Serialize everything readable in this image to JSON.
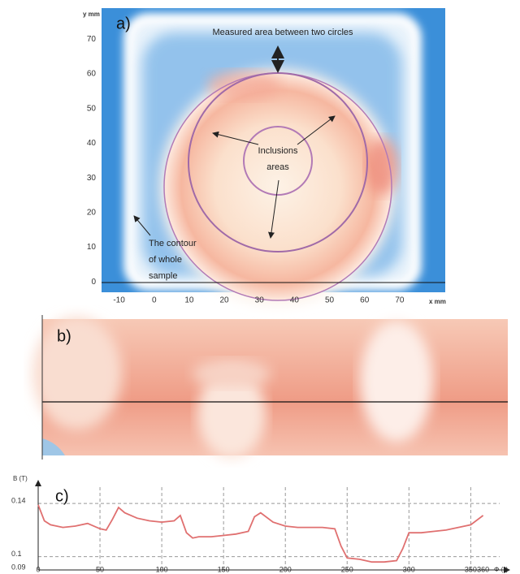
{
  "chart_data": [
    {
      "type": "heatmap",
      "panel_label": "a)",
      "xlabel": "x mm",
      "ylabel": "y mm",
      "xlim": [
        -15,
        83
      ],
      "ylim": [
        -3,
        79
      ],
      "xticks": [
        -10,
        0,
        10,
        20,
        30,
        40,
        50,
        60,
        70
      ],
      "yticks": [
        0,
        10,
        20,
        30,
        40,
        50,
        60,
        70
      ],
      "annotations": [
        "Measured area between two circles",
        "Inclusions",
        "areas",
        "The contour",
        "of whole",
        "sample"
      ]
    },
    {
      "type": "heatmap",
      "panel_label": "b)"
    },
    {
      "type": "line",
      "panel_label": "c)",
      "xlabel": "Φ (°)",
      "ylabel": "B (T)",
      "xlim": [
        0,
        380
      ],
      "ylim": [
        0.09,
        0.145
      ],
      "xticks": [
        0,
        50,
        100,
        150,
        200,
        250,
        300,
        350,
        360
      ],
      "yticks": [
        0.09,
        0.1,
        0.14
      ],
      "grid": "dashed",
      "color": "#e07070",
      "x": [
        0,
        5,
        10,
        20,
        30,
        40,
        50,
        55,
        60,
        65,
        70,
        80,
        90,
        100,
        110,
        115,
        120,
        125,
        130,
        140,
        150,
        160,
        170,
        175,
        180,
        190,
        200,
        210,
        220,
        230,
        240,
        245,
        250,
        260,
        270,
        280,
        290,
        295,
        300,
        310,
        320,
        330,
        340,
        350,
        360
      ],
      "values": [
        0.139,
        0.127,
        0.124,
        0.122,
        0.123,
        0.125,
        0.121,
        0.12,
        0.128,
        0.137,
        0.133,
        0.129,
        0.127,
        0.126,
        0.127,
        0.131,
        0.118,
        0.114,
        0.115,
        0.115,
        0.116,
        0.117,
        0.119,
        0.13,
        0.133,
        0.126,
        0.123,
        0.122,
        0.122,
        0.122,
        0.121,
        0.108,
        0.099,
        0.098,
        0.096,
        0.096,
        0.097,
        0.106,
        0.118,
        0.118,
        0.119,
        0.12,
        0.122,
        0.124,
        0.131
      ]
    }
  ]
}
